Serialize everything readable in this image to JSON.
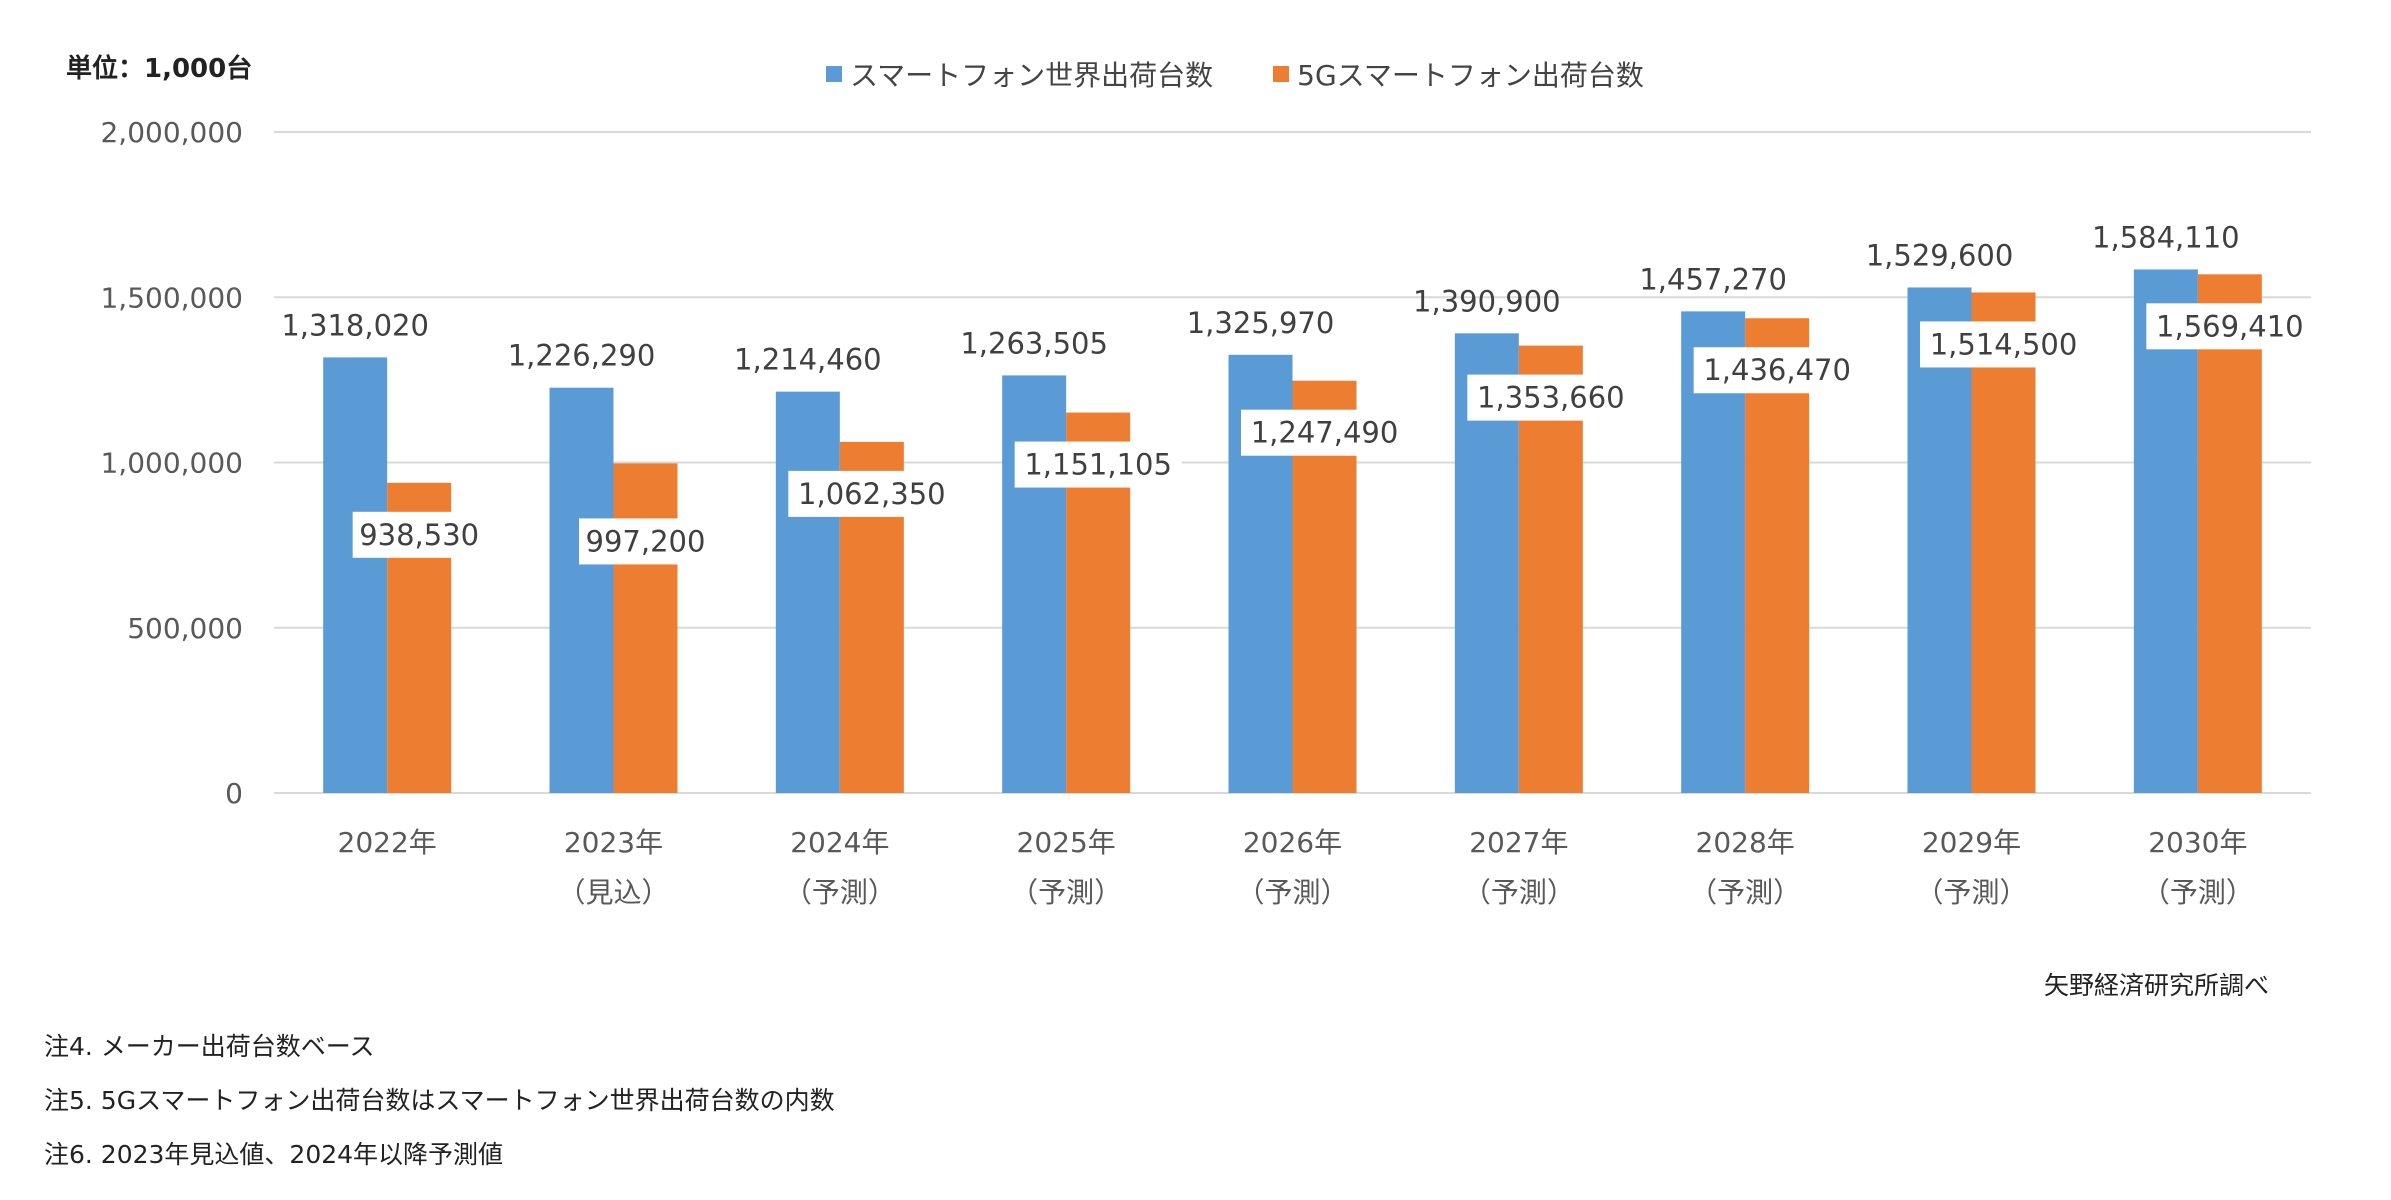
{
  "chart_data": {
    "type": "bar",
    "unit_label": "単位：1,000台",
    "categories": [
      [
        "2022年",
        ""
      ],
      [
        "2023年",
        "（見込）"
      ],
      [
        "2024年",
        "（予測）"
      ],
      [
        "2025年",
        "（予測）"
      ],
      [
        "2026年",
        "（予測）"
      ],
      [
        "2027年",
        "（予測）"
      ],
      [
        "2028年",
        "（予測）"
      ],
      [
        "2029年",
        "（予測）"
      ],
      [
        "2030年",
        "（予測）"
      ]
    ],
    "series": [
      {
        "name": "スマートフォン世界出荷台数",
        "color": "#5B9BD5",
        "values": [
          1318020,
          1226290,
          1214460,
          1263505,
          1325970,
          1390900,
          1457270,
          1529600,
          1584110
        ],
        "labels": [
          "1,318,020",
          "1,226,290",
          "1,214,460",
          "1,263,505",
          "1,325,970",
          "1,390,900",
          "1,457,270",
          "1,529,600",
          "1,584,110"
        ]
      },
      {
        "name": "5Gスマートフォン出荷台数",
        "color": "#ED7D31",
        "values": [
          938530,
          997200,
          1062350,
          1151105,
          1247490,
          1353660,
          1436470,
          1514500,
          1569410
        ],
        "labels": [
          "938,530",
          "997,200",
          "1,062,350",
          "1,151,105",
          "1,247,490",
          "1,353,660",
          "1,436,470",
          "1,514,500",
          "1,569,410"
        ]
      }
    ],
    "ylim": [
      0,
      2000000
    ],
    "yticks": [
      0,
      500000,
      1000000,
      1500000,
      2000000
    ],
    "ytick_labels": [
      "0",
      "500,000",
      "1,000,000",
      "1,500,000",
      "2,000,000"
    ],
    "grid": true,
    "legend_position": "top"
  },
  "source": "矢野経済研究所調べ",
  "notes": [
    "注4. メーカー出荷台数ベース",
    "注5. 5Gスマートフォン出荷台数はスマートフォン世界出荷台数の内数",
    "注6. 2023年見込値、2024年以降予測値"
  ]
}
